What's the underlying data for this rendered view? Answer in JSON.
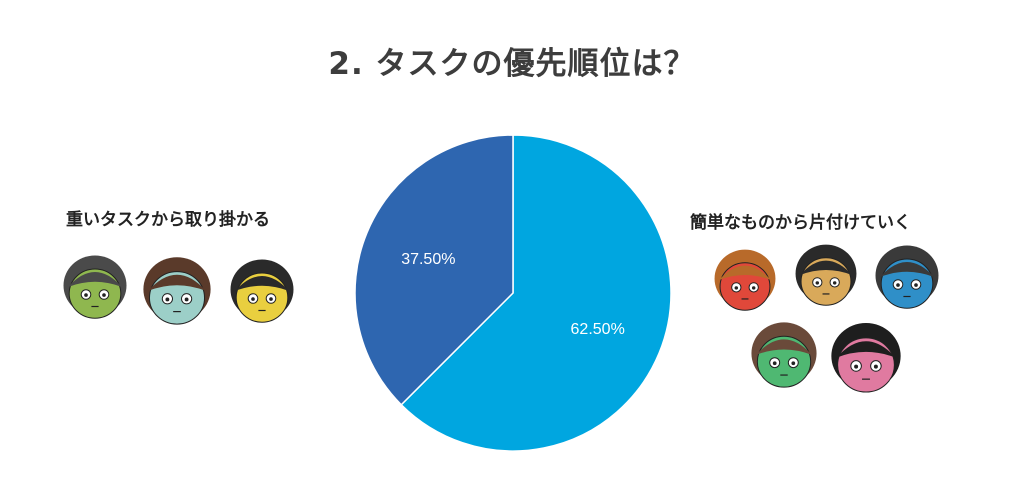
{
  "title": "2. タスクの優先順位は？",
  "legend_left": "重いタスクから取り掛かる",
  "legend_right": "簡単なものから片付けていく",
  "chart_data": {
    "type": "pie",
    "slices": [
      {
        "label": "簡単なものから片付けていく",
        "value": 62.5,
        "display": "62.50%",
        "color": "#00a6e0"
      },
      {
        "label": "重いタスクから取り掛かる",
        "value": 37.5,
        "display": "37.50%",
        "color": "#2e66b0"
      }
    ]
  },
  "colors": {
    "title": "#3d3d3d",
    "pie_border": "#ffffff",
    "slice_label": "#ffffff"
  },
  "faces_left": [
    {
      "icon": "face-green-icon",
      "skin": "#8fb74f",
      "hair": "#4a4a4a"
    },
    {
      "icon": "face-teal-icon",
      "skin": "#9ccfc8",
      "hair": "#5a3a2a"
    },
    {
      "icon": "face-yellow-icon",
      "skin": "#e9cf3f",
      "hair": "#2a2a2a"
    }
  ],
  "faces_right": [
    {
      "icon": "face-red-icon",
      "skin": "#e0483a",
      "hair": "#b86a2a"
    },
    {
      "icon": "face-tan-icon",
      "skin": "#d9a95a",
      "hair": "#2a2a2a"
    },
    {
      "icon": "face-blue-icon",
      "skin": "#2f8fc8",
      "hair": "#3a3a3a"
    },
    {
      "icon": "face-mint-icon",
      "skin": "#4fb872",
      "hair": "#6a4a3a"
    },
    {
      "icon": "face-pink-icon",
      "skin": "#e07aa0",
      "hair": "#1e1e1e"
    }
  ]
}
